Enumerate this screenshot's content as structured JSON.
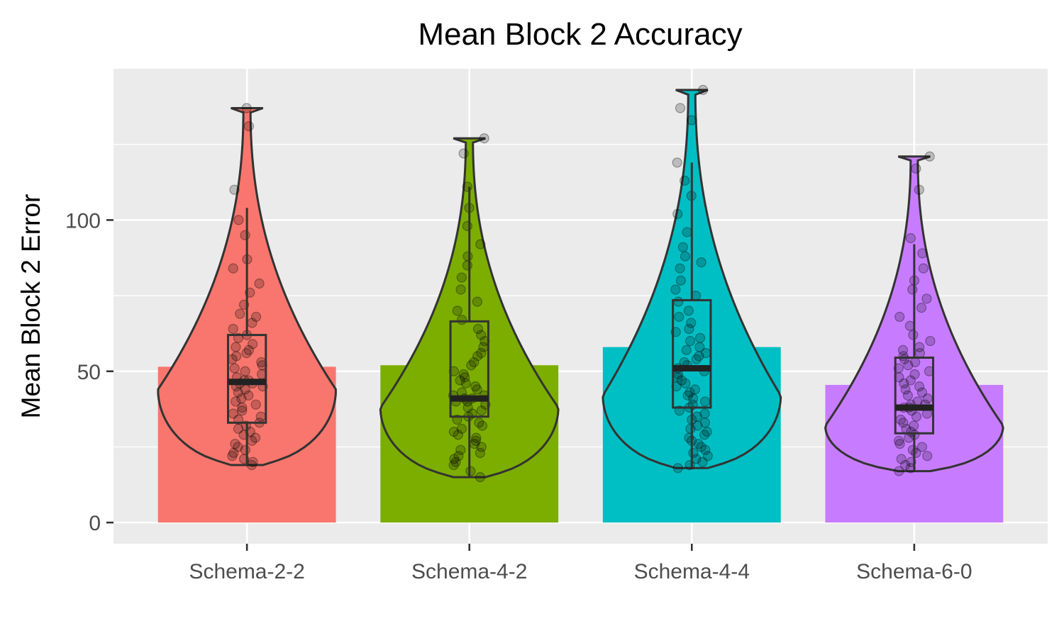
{
  "chart_data": {
    "type": "bar",
    "title": "Mean Block 2 Accuracy",
    "xlabel": "",
    "ylabel": "Mean Block 2 Error",
    "ylim": [
      -7,
      150
    ],
    "yticks": [
      0,
      50,
      100
    ],
    "grid": true,
    "legend": "none",
    "categories": [
      "Schema-2-2",
      "Schema-4-2",
      "Schema-4-4",
      "Schema-6-0"
    ],
    "values": [
      51.5,
      52,
      58,
      45.5
    ],
    "colors": [
      "#F8766D",
      "#7CAE00",
      "#00BFC4",
      "#C77CFF"
    ],
    "boxplots": [
      {
        "min": 19,
        "q1": 33,
        "median": 46.5,
        "q3": 62,
        "max": 104
      },
      {
        "min": 15,
        "q1": 35,
        "median": 41,
        "q3": 66.5,
        "max": 111
      },
      {
        "min": 18,
        "q1": 38,
        "median": 51,
        "q3": 73.5,
        "max": 119
      },
      {
        "min": 17,
        "q1": 29.5,
        "median": 38,
        "q3": 54.5,
        "max": 92
      }
    ],
    "violins": [
      {
        "min": 19,
        "max": 137,
        "peak": 44
      },
      {
        "min": 15,
        "max": 127,
        "peak": 38
      },
      {
        "min": 18,
        "max": 143,
        "peak": 42
      },
      {
        "min": 17,
        "max": 121,
        "peak": 32
      }
    ],
    "points": [
      [
        137,
        131,
        110,
        100,
        95,
        87,
        84,
        79,
        76,
        72,
        69,
        68,
        66,
        64,
        62,
        61,
        59,
        58,
        57,
        56,
        55,
        54,
        53,
        52,
        51,
        50,
        49,
        48,
        47,
        47,
        46,
        46,
        45,
        45,
        44,
        43,
        42,
        41,
        40,
        39,
        38,
        37,
        36,
        35,
        34,
        33,
        32,
        31,
        30,
        29,
        28,
        27,
        26,
        25,
        24,
        23,
        22,
        21,
        20,
        19
      ],
      [
        127,
        122,
        111,
        104,
        98,
        92,
        88,
        85,
        81,
        77,
        73,
        70,
        67,
        64,
        62,
        60,
        58,
        56,
        55,
        53,
        52,
        50,
        49,
        48,
        47,
        46,
        45,
        44,
        43,
        42,
        42,
        41,
        41,
        40,
        40,
        39,
        38,
        37,
        36,
        35,
        34,
        33,
        32,
        31,
        30,
        29,
        28,
        27,
        26,
        25,
        24,
        23,
        22,
        21,
        20,
        19,
        17,
        15
      ],
      [
        143,
        137,
        133,
        119,
        113,
        108,
        102,
        96,
        91,
        88,
        86,
        84,
        80,
        77,
        75,
        73,
        70,
        68,
        66,
        64,
        63,
        61,
        60,
        58,
        57,
        56,
        55,
        54,
        53,
        52,
        51,
        50,
        49,
        48,
        47,
        46,
        45,
        44,
        43,
        42,
        41,
        40,
        39,
        38,
        37,
        36,
        35,
        34,
        33,
        32,
        31,
        30,
        29,
        28,
        27,
        26,
        25,
        24,
        23,
        22,
        21,
        20,
        19,
        18
      ],
      [
        121,
        117,
        110,
        94,
        89,
        84,
        80,
        77,
        74,
        71,
        68,
        65,
        62,
        60,
        58,
        57,
        56,
        55,
        54,
        53,
        52,
        51,
        50,
        49,
        48,
        47,
        46,
        45,
        44,
        43,
        42,
        41,
        40,
        39,
        39,
        38,
        38,
        37,
        36,
        35,
        34,
        33,
        32,
        31,
        30,
        29,
        28,
        27,
        26,
        25,
        24,
        23,
        22,
        21,
        20,
        19,
        18,
        17
      ]
    ]
  }
}
